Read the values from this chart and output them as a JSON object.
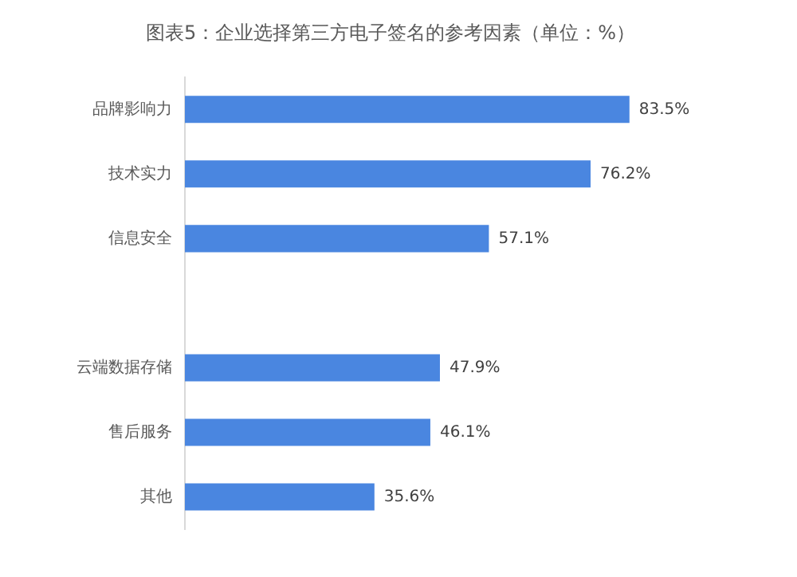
{
  "chart_data": {
    "type": "bar",
    "orientation": "horizontal",
    "title": "图表5：企业选择第三方电子签名的参考因素（单位：%）",
    "categories": [
      "品牌影响力",
      "技术实力",
      "信息安全",
      null,
      "云端数据存储",
      "售后服务",
      "其他"
    ],
    "values": [
      83.5,
      76.2,
      57.1,
      null,
      47.9,
      46.1,
      35.6
    ],
    "value_labels": [
      "83.5%",
      "76.2%",
      "57.1%",
      null,
      "47.9%",
      "46.1%",
      "35.6%"
    ],
    "color": "#4a86e0",
    "tick_labels": "y"
  }
}
